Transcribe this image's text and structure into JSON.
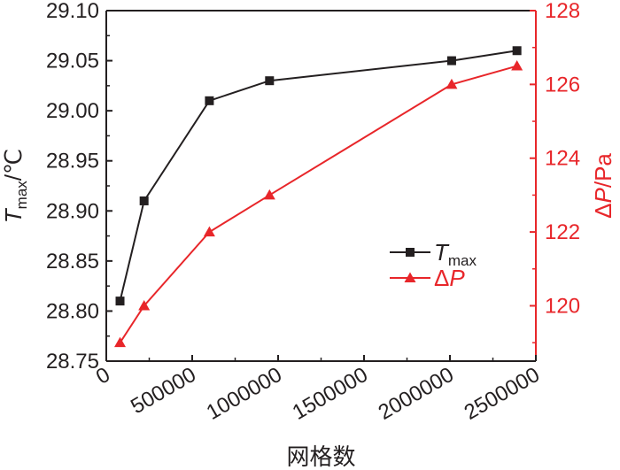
{
  "chart_data": {
    "type": "line",
    "xlabel": "网格数",
    "x_tick_labels": [
      "0",
      "500000",
      "1000000",
      "1500000",
      "2000000",
      "2500000"
    ],
    "xlim": [
      0,
      2500000
    ],
    "x_ticks": [
      0,
      500000,
      1000000,
      1500000,
      2000000,
      2500000
    ],
    "ylabel_left": {
      "main": "T",
      "sub": "max",
      "unit": "/℃"
    },
    "ylim_left": [
      28.75,
      29.1
    ],
    "y_ticks_left": [
      28.75,
      28.8,
      28.85,
      28.9,
      28.95,
      29.0,
      29.05,
      29.1
    ],
    "y_tick_labels_left": [
      "28.75",
      "28.80",
      "28.85",
      "28.90",
      "28.95",
      "29.00",
      "29.05",
      "29.10"
    ],
    "ylabel_right": {
      "prefix": "Δ",
      "main": "P",
      "unit": "/Pa"
    },
    "ylim_right": [
      118.5,
      128
    ],
    "y_ticks_right": [
      120,
      122,
      124,
      126,
      128
    ],
    "y_tick_labels_right": [
      "120",
      "122",
      "124",
      "126",
      "128"
    ],
    "legend_position": "center-right",
    "grid": false,
    "series": [
      {
        "name": "Tmax",
        "legend_main": "T",
        "legend_sub": "max",
        "axis": "left",
        "color": "#231f20",
        "marker": "square",
        "x": [
          80000,
          220000,
          600000,
          950000,
          2010000,
          2390000
        ],
        "values": [
          28.81,
          28.91,
          29.01,
          29.03,
          29.05,
          29.06
        ]
      },
      {
        "name": "ΔP",
        "legend_prefix": "Δ",
        "legend_main": "P",
        "axis": "right",
        "color": "#e8262a",
        "marker": "triangle",
        "x": [
          80000,
          220000,
          600000,
          950000,
          2010000,
          2390000
        ],
        "values": [
          119.0,
          120.0,
          122.0,
          123.0,
          126.0,
          126.5
        ]
      }
    ]
  }
}
